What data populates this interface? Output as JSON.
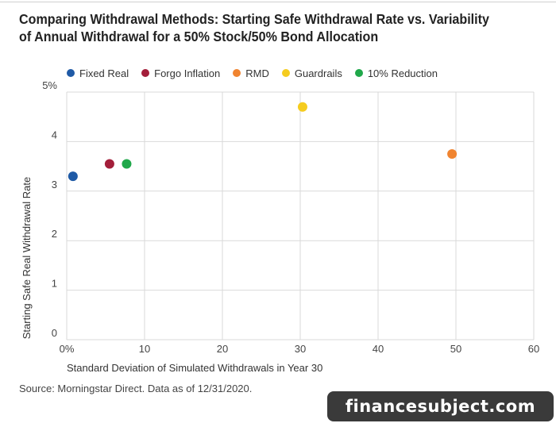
{
  "chart_data": {
    "type": "scatter",
    "title": "Comparing Withdrawal Methods: Starting Safe Withdrawal Rate vs. Variability of Annual Withdrawal for a 50% Stock/50% Bond Allocation",
    "xlabel": "Standard Deviation of Simulated Withdrawals in Year 30",
    "ylabel": "Starting Safe Real Withdrawal Rate",
    "xlim": [
      0,
      60
    ],
    "ylim": [
      0,
      5
    ],
    "x_ticks": [
      "0%",
      "10",
      "20",
      "30",
      "40",
      "50",
      "60"
    ],
    "y_ticks": [
      "0",
      "1",
      "2",
      "3",
      "4",
      "5%"
    ],
    "grid": true,
    "legend_position": "top-left",
    "series": [
      {
        "name": "Fixed Real",
        "color": "#1f5aa6",
        "x": 0.8,
        "y": 3.3
      },
      {
        "name": "Forgo Inflation",
        "color": "#a31e3a",
        "x": 5.5,
        "y": 3.55
      },
      {
        "name": "RMD",
        "color": "#f08430",
        "x": 49.5,
        "y": 3.75
      },
      {
        "name": "Guardrails",
        "color": "#f5cc1f",
        "x": 30.3,
        "y": 4.7
      },
      {
        "name": "10% Reduction",
        "color": "#20a84a",
        "x": 7.7,
        "y": 3.55
      }
    ]
  },
  "source": "Source: Morningstar Direct. Data as of 12/31/2020.",
  "watermark": "financesubject.com"
}
